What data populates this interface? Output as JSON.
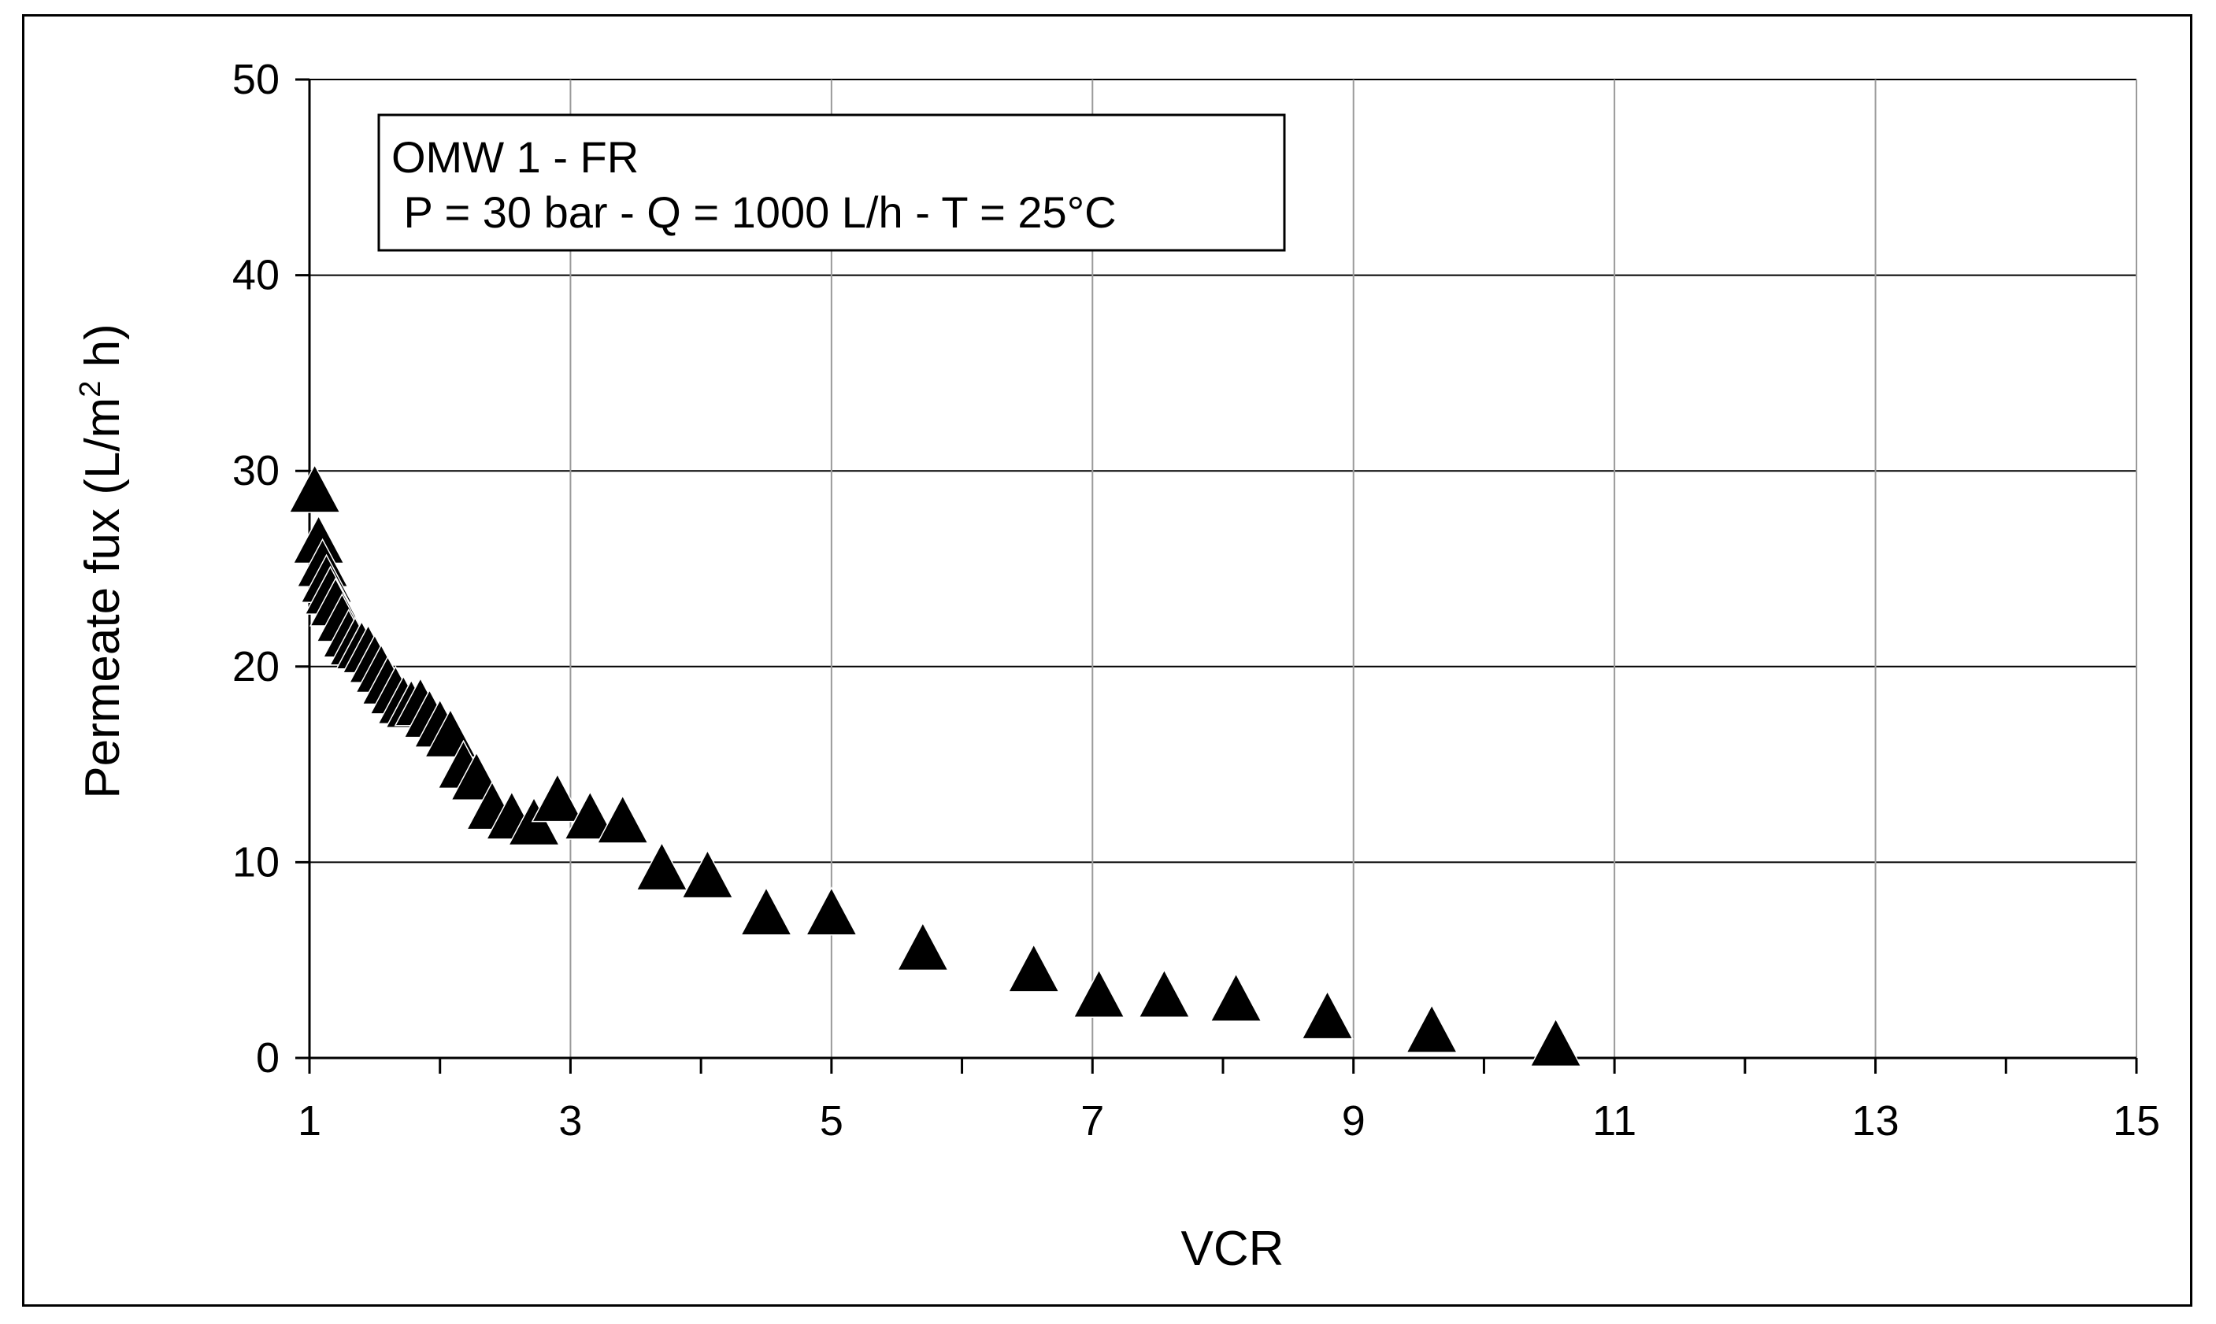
{
  "chart_data": {
    "type": "scatter",
    "title": "",
    "xlabel": "VCR",
    "ylabel": {
      "prefix": "Permeate fux (L/m",
      "superscript": "2",
      "suffix": " h)"
    },
    "xlim": [
      1,
      15
    ],
    "ylim": [
      0,
      50
    ],
    "x_ticks": [
      1,
      3,
      5,
      7,
      9,
      11,
      13,
      15
    ],
    "x_minor_ticks": [
      2,
      4,
      6,
      8,
      10,
      12,
      14
    ],
    "y_ticks": [
      0,
      10,
      20,
      30,
      40,
      50
    ],
    "grid": true,
    "legend": {
      "placement": "top-left",
      "lines": [
        "OMW 1 - FR",
        " P = 30 bar - Q = 1000 L/h - T = 25°C"
      ]
    },
    "marker": {
      "shape": "triangle",
      "color": "#000000"
    },
    "series": [
      {
        "x": [
          1.04,
          1.07,
          1.1,
          1.13,
          1.16,
          1.2,
          1.25,
          1.3,
          1.35,
          1.4,
          1.45,
          1.5,
          1.55,
          1.6,
          1.66,
          1.72,
          1.78,
          1.85,
          1.92,
          2.0,
          2.08,
          2.18,
          2.28,
          2.4,
          2.55,
          2.72,
          2.9,
          3.15,
          3.4,
          3.7,
          4.05,
          4.5,
          5.0,
          5.7,
          6.55,
          7.05,
          7.55,
          8.1,
          8.8,
          9.6,
          10.55
        ],
        "y": [
          28.8,
          26.2,
          25.0,
          24.2,
          23.6,
          23.0,
          22.2,
          21.4,
          21.0,
          20.8,
          20.6,
          20.1,
          19.6,
          19.0,
          18.5,
          18.0,
          17.8,
          17.9,
          17.3,
          16.8,
          16.3,
          14.7,
          14.1,
          12.6,
          12.1,
          11.8,
          13.0,
          12.1,
          11.9,
          9.5,
          9.1,
          7.2,
          7.2,
          5.4,
          4.3,
          3.0,
          3.0,
          2.8,
          1.9,
          1.2,
          0.5
        ]
      }
    ]
  }
}
